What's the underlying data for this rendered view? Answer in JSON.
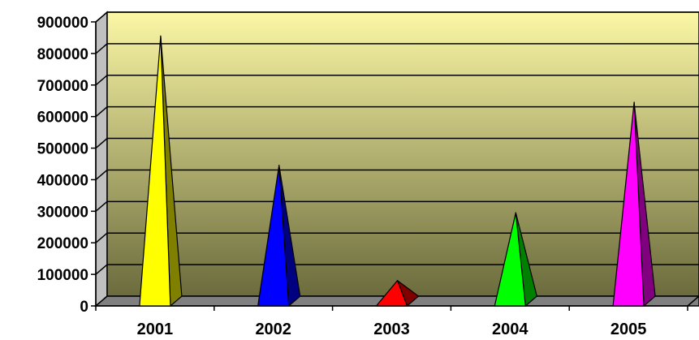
{
  "chart_data": {
    "type": "bar",
    "bar_shape": "pyramid-3d",
    "categories": [
      "2001",
      "2002",
      "2003",
      "2004",
      "2005"
    ],
    "values": [
      840000,
      430000,
      65000,
      280000,
      630000
    ],
    "bar_colors": [
      "#ffff00",
      "#0000ff",
      "#ff0000",
      "#00ff00",
      "#ff00ff"
    ],
    "bar_side_colors": [
      "#808000",
      "#000080",
      "#800000",
      "#008000",
      "#800080"
    ],
    "ylim": [
      0,
      900000
    ],
    "y_ticks": [
      0,
      100000,
      200000,
      300000,
      400000,
      500000,
      600000,
      700000,
      800000,
      900000
    ],
    "y_tick_labels": [
      "0",
      "100000",
      "200000",
      "300000",
      "400000",
      "500000",
      "600000",
      "700000",
      "800000",
      "900000"
    ],
    "grid": true,
    "legend": "none",
    "title": "",
    "xlabel": "",
    "ylabel": "",
    "colors": {
      "wall_top": "#fbf7a5",
      "wall_bottom": "#6b6b3d",
      "floor": "#808080",
      "side_wall": "#c0c0c0",
      "gridline": "#000000"
    }
  }
}
